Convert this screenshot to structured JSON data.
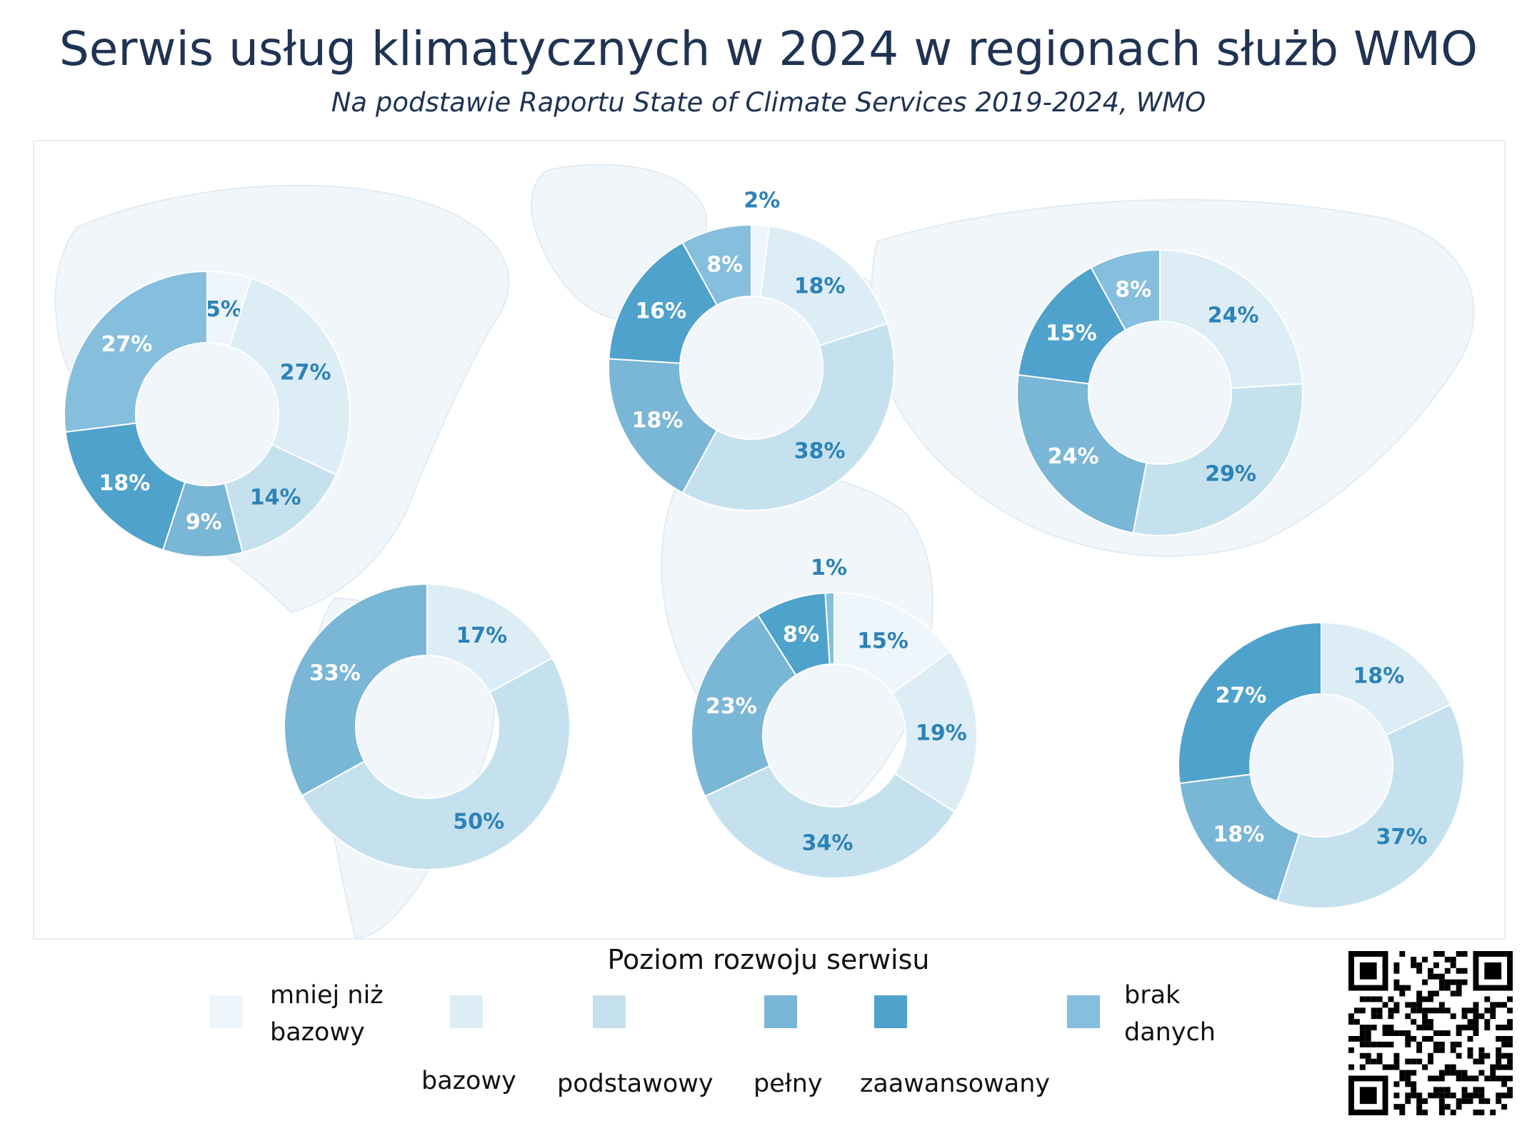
{
  "title": "Serwis usług klimatycznych w 2024 w regionach służb WMO",
  "subtitle": "Na podstawie Raportu State of Climate Services 2019-2024, WMO",
  "legend": {
    "title": "Poziom rozwoju serwisu",
    "items": [
      {
        "line1": "mniej niż",
        "line2": "bazowy",
        "color": "#eef5fb"
      },
      {
        "line1": "bazowy",
        "line2": "",
        "color": "#ddedf6"
      },
      {
        "line1": "podstawowy",
        "line2": "",
        "color": "#c6e1ee"
      },
      {
        "line1": "pełny",
        "line2": "",
        "color": "#7ab6d6"
      },
      {
        "line1": "zaawansowany",
        "line2": "",
        "color": "#4fa2cb"
      },
      {
        "line1": "brak",
        "line2": "danych",
        "color": "#86bedd"
      }
    ]
  },
  "chart_data": [
    {
      "type": "pie",
      "region_position": "north-america",
      "categories": [
        "mniej niż bazowy",
        "bazowy",
        "podstawowy",
        "pełny",
        "zaawansowany",
        "brak danych"
      ],
      "values": [
        5,
        27,
        14,
        9,
        18,
        27
      ],
      "labels": [
        "5%",
        "27%",
        "14%",
        "9%",
        "18%",
        "27%"
      ]
    },
    {
      "type": "pie",
      "region_position": "europe",
      "categories": [
        "mniej niż bazowy",
        "bazowy",
        "podstawowy",
        "pełny",
        "zaawansowany",
        "brak danych"
      ],
      "values": [
        2,
        18,
        38,
        18,
        16,
        8
      ],
      "labels": [
        "2%",
        "18%",
        "38%",
        "18%",
        "16%",
        "8%"
      ]
    },
    {
      "type": "pie",
      "region_position": "asia",
      "categories": [
        "bazowy",
        "podstawowy",
        "pełny",
        "zaawansowany",
        "brak danych"
      ],
      "values": [
        24,
        29,
        24,
        15,
        8
      ],
      "labels": [
        "24%",
        "29%",
        "24%",
        "15%",
        "8%"
      ]
    },
    {
      "type": "pie",
      "region_position": "south-america",
      "categories": [
        "bazowy",
        "podstawowy",
        "pełny"
      ],
      "values": [
        17,
        50,
        33
      ],
      "labels": [
        "17%",
        "50%",
        "33%"
      ]
    },
    {
      "type": "pie",
      "region_position": "africa",
      "categories": [
        "mniej niż bazowy",
        "bazowy",
        "podstawowy",
        "pełny",
        "zaawansowany",
        "brak danych"
      ],
      "values": [
        15,
        19,
        34,
        23,
        8,
        1
      ],
      "labels": [
        "15%",
        "19%",
        "34%",
        "23%",
        "8%",
        "1%"
      ]
    },
    {
      "type": "pie",
      "region_position": "southwest-pacific",
      "categories": [
        "bazowy",
        "podstawowy",
        "pełny",
        "zaawansowany"
      ],
      "values": [
        18,
        37,
        18,
        27
      ],
      "labels": [
        "18%",
        "37%",
        "18%",
        "27%"
      ]
    }
  ]
}
